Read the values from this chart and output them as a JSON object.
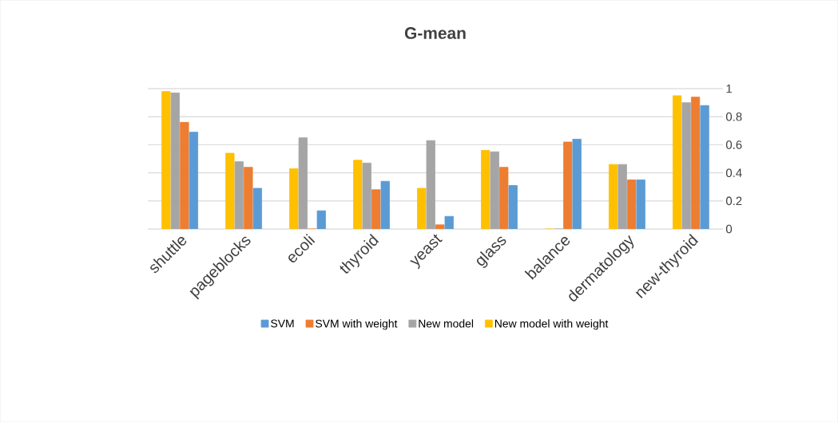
{
  "chart_data": {
    "type": "bar",
    "title": "G-mean",
    "categories": [
      "shuttle",
      "pageblocks",
      "ecoli",
      "thyroid",
      "yeast",
      "glass",
      "balance",
      "dermatology",
      "new-thyroid"
    ],
    "series": [
      {
        "name": "SVM",
        "color": "#5b9bd5",
        "values": [
          0.69,
          0.29,
          0.13,
          0.34,
          0.09,
          0.31,
          0.64,
          0.35,
          0.88
        ]
      },
      {
        "name": "SVM with weight",
        "color": "#ed7d31",
        "values": [
          0.76,
          0.44,
          0,
          0.28,
          0.03,
          0.44,
          0.62,
          0.35,
          0.94
        ]
      },
      {
        "name": "New model",
        "color": "#a5a5a5",
        "values": [
          0.97,
          0.48,
          0.65,
          0.47,
          0.63,
          0.55,
          0,
          0.46,
          0.9
        ]
      },
      {
        "name": "New model with weight",
        "color": "#ffc000",
        "values": [
          0.98,
          0.54,
          0.43,
          0.49,
          0.29,
          0.56,
          0,
          0.46,
          0.95
        ]
      }
    ],
    "ylim": [
      0,
      1
    ],
    "yticks": [
      0,
      0.2,
      0.4,
      0.6,
      0.8,
      1
    ],
    "grid": "y",
    "legend": "bottom"
  }
}
